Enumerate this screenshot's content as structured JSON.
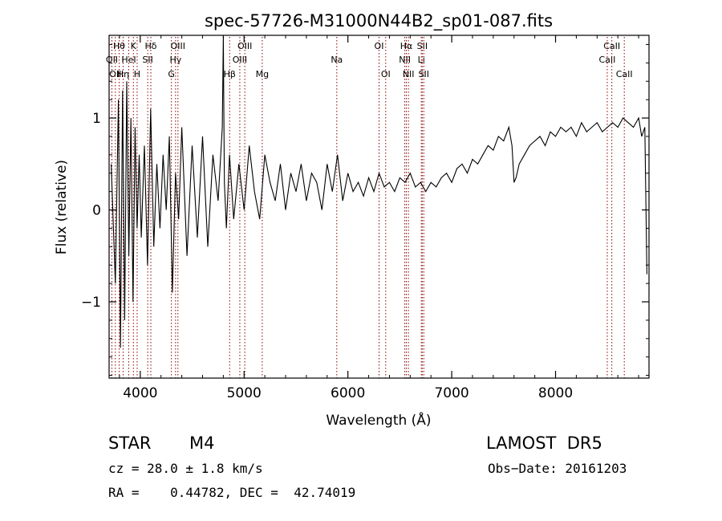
{
  "chart_data": {
    "type": "line",
    "title": "spec-57726-M31000N44B2_sp01-087.fits",
    "xlabel": "Wavelength (Å)",
    "ylabel": "Flux (relative)",
    "xlim": [
      3700,
      8900
    ],
    "ylim": [
      -1.83,
      1.9
    ],
    "xticks": [
      4000,
      5000,
      6000,
      7000,
      8000
    ],
    "yticks": [
      -1,
      0,
      1
    ],
    "xtick_labels": [
      "4000",
      "5000",
      "6000",
      "7000",
      "8000"
    ],
    "ytick_labels": [
      "−1",
      "0",
      "1"
    ],
    "grid": false,
    "line_color": "#000000",
    "marker_color": "#8b0000",
    "series": [
      {
        "x": [
          3720,
          3760,
          3790,
          3810,
          3830,
          3850,
          3870,
          3890,
          3910,
          3930,
          3950,
          3970,
          3990,
          4010,
          4040,
          4070,
          4100,
          4130,
          4160,
          4190,
          4220,
          4250,
          4280,
          4310,
          4340,
          4370,
          4400,
          4450,
          4500,
          4550,
          4600,
          4650,
          4700,
          4750,
          4790,
          4800,
          4805,
          4810,
          4830,
          4860,
          4900,
          4950,
          5000,
          5050,
          5100,
          5150,
          5200,
          5250,
          5300,
          5350,
          5400,
          5450,
          5500,
          5550,
          5600,
          5650,
          5700,
          5750,
          5800,
          5850,
          5900,
          5950,
          6000,
          6050,
          6100,
          6150,
          6200,
          6250,
          6300,
          6350,
          6400,
          6450,
          6500,
          6550,
          6600,
          6650,
          6700,
          6750,
          6800,
          6850,
          6900,
          6950,
          7000,
          7050,
          7100,
          7150,
          7200,
          7250,
          7300,
          7350,
          7400,
          7450,
          7500,
          7550,
          7580,
          7600,
          7620,
          7650,
          7700,
          7750,
          7800,
          7850,
          7900,
          7950,
          8000,
          8050,
          8100,
          8150,
          8200,
          8250,
          8300,
          8350,
          8400,
          8450,
          8500,
          8550,
          8600,
          8650,
          8700,
          8750,
          8800,
          8830,
          8860,
          8880
        ],
        "y": [
          0.5,
          -0.8,
          1.2,
          -1.5,
          1.3,
          -1.2,
          1.4,
          -0.5,
          1.0,
          -1.0,
          0.9,
          -0.2,
          0.6,
          -0.3,
          0.7,
          -0.6,
          1.1,
          -0.4,
          0.5,
          -0.2,
          0.6,
          0.0,
          0.8,
          -0.9,
          0.4,
          -0.1,
          0.9,
          -0.5,
          0.7,
          -0.3,
          0.8,
          -0.4,
          0.6,
          0.1,
          0.9,
          1.9,
          1.1,
          0.3,
          -0.2,
          0.6,
          -0.1,
          0.5,
          0.0,
          0.7,
          0.2,
          -0.1,
          0.6,
          0.3,
          0.1,
          0.5,
          0.0,
          0.4,
          0.2,
          0.5,
          0.1,
          0.4,
          0.3,
          0.0,
          0.5,
          0.2,
          0.6,
          0.1,
          0.4,
          0.2,
          0.3,
          0.15,
          0.35,
          0.2,
          0.4,
          0.25,
          0.3,
          0.2,
          0.35,
          0.3,
          0.4,
          0.25,
          0.3,
          0.2,
          0.3,
          0.25,
          0.35,
          0.4,
          0.3,
          0.45,
          0.5,
          0.4,
          0.55,
          0.5,
          0.6,
          0.7,
          0.65,
          0.8,
          0.75,
          0.9,
          0.7,
          0.3,
          0.35,
          0.5,
          0.6,
          0.7,
          0.75,
          0.8,
          0.7,
          0.85,
          0.8,
          0.9,
          0.85,
          0.9,
          0.8,
          0.95,
          0.85,
          0.9,
          0.95,
          0.85,
          0.9,
          0.95,
          0.9,
          1.0,
          0.95,
          0.9,
          1.0,
          0.8,
          0.9,
          -0.7
        ]
      }
    ],
    "line_markers": [
      {
        "x": 3727,
        "label": "OII",
        "row": 2
      },
      {
        "x": 3760,
        "label": "OII",
        "row": 3
      },
      {
        "x": 3797,
        "label": "Hθ",
        "row": 1
      },
      {
        "x": 3835,
        "label": "Hη",
        "row": 3
      },
      {
        "x": 3889,
        "label": "HeI",
        "row": 2
      },
      {
        "x": 3934,
        "label": "K",
        "row": 1
      },
      {
        "x": 3970,
        "label": "H",
        "row": 3
      },
      {
        "x": 4072,
        "label": "SII",
        "row": 2
      },
      {
        "x": 4102,
        "label": "Hδ",
        "row": 1
      },
      {
        "x": 4300,
        "label": "G",
        "row": 3
      },
      {
        "x": 4340,
        "label": "Hγ",
        "row": 2
      },
      {
        "x": 4363,
        "label": "OIII",
        "row": 1
      },
      {
        "x": 4861,
        "label": "Hβ",
        "row": 3
      },
      {
        "x": 4959,
        "label": "OIII",
        "row": 2
      },
      {
        "x": 5007,
        "label": "OIII",
        "row": 1
      },
      {
        "x": 5175,
        "label": "Mg",
        "row": 3
      },
      {
        "x": 5893,
        "label": "Na",
        "row": 2
      },
      {
        "x": 6300,
        "label": "OI",
        "row": 1
      },
      {
        "x": 6364,
        "label": "OI",
        "row": 3
      },
      {
        "x": 6548,
        "label": "NII",
        "row": 2
      },
      {
        "x": 6563,
        "label": "Hα",
        "row": 1
      },
      {
        "x": 6583,
        "label": "NII",
        "row": 3
      },
      {
        "x": 6707,
        "label": "Li",
        "row": 2
      },
      {
        "x": 6716,
        "label": "SII",
        "row": 1
      },
      {
        "x": 6731,
        "label": "SII",
        "row": 3
      },
      {
        "x": 8498,
        "label": "CaII",
        "row": 2
      },
      {
        "x": 8542,
        "label": "CaII",
        "row": 1
      },
      {
        "x": 8662,
        "label": "CaII",
        "row": 3
      }
    ]
  },
  "info": {
    "class": "STAR",
    "subclass": "M4",
    "survey": "LAMOST  DR5",
    "cz": "cz = 28.0 ± 1.8 km/s",
    "obs_date": "Obs−Date: 20161203",
    "coords": "RA =    0.44782, DEC =  42.74019"
  }
}
